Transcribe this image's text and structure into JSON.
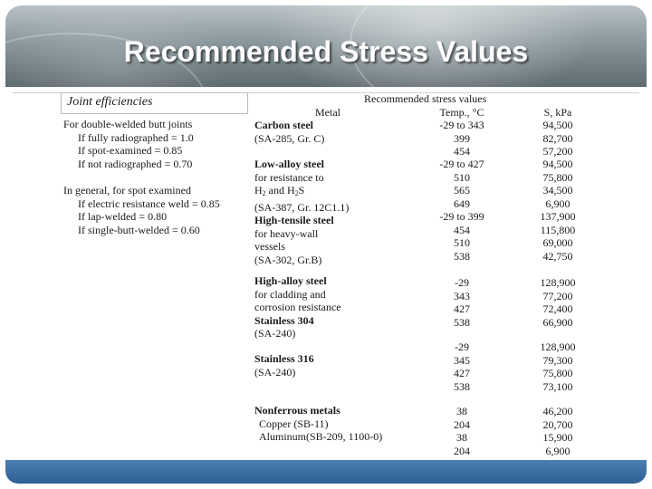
{
  "slide": {
    "title": "Recommended Stress Values"
  },
  "joint": {
    "heading": "Joint efficiencies",
    "group1_title": "For double-welded butt joints",
    "group1_items": [
      "If fully radiographed = 1.0",
      "If spot-examined = 0.85",
      "If not radiographed = 0.70"
    ],
    "group2_title": "In general, for spot examined",
    "group2_items": [
      "If electric resistance weld = 0.85",
      "If lap-welded = 0.80",
      "If single-butt-welded = 0.60"
    ]
  },
  "table": {
    "header_main": "Recommended stress values",
    "header_metal": "Metal",
    "header_temp": "Temp., °C",
    "header_stress": "S, kPa",
    "groups": [
      {
        "lines": [
          {
            "text": "Carbon steel",
            "bold": true
          },
          {
            "text": "(SA-285, Gr. C)",
            "bold": false
          }
        ],
        "temps": [
          "-29 to 343",
          "399",
          "454"
        ],
        "stress": [
          "94,500",
          "82,700",
          "57,200"
        ]
      },
      {
        "lines": [
          {
            "text": "Low-alloy steel",
            "bold": true
          },
          {
            "text": "for resistance to",
            "bold": false
          },
          {
            "text": "H2 and H2S",
            "bold": false
          },
          {
            "text": "(SA-387, Gr. 12C1.1)",
            "bold": false
          },
          {
            "text": "High-tensile steel",
            "bold": true
          },
          {
            "text": "for heavy-wall",
            "bold": false
          },
          {
            "text": "vessels",
            "bold": false
          },
          {
            "text": "(SA-302, Gr.B)",
            "bold": false
          }
        ],
        "temps": [
          "-29 to 427",
          "510",
          "565",
          "649",
          "-29 to 399",
          "454",
          "510",
          "538"
        ],
        "stress": [
          "94,500",
          "75,800",
          "34,500",
          "6,900",
          "137,900",
          "115,800",
          "69,000",
          "42,750"
        ]
      },
      {
        "lines": [
          {
            "text": "High-alloy steel",
            "bold": true
          },
          {
            "text": "for cladding and",
            "bold": false
          },
          {
            "text": "corrosion resistance",
            "bold": false
          },
          {
            "text": "Stainless 304",
            "bold": true
          },
          {
            "text": "(SA-240)",
            "bold": false
          }
        ],
        "temps": [
          "-29",
          "343",
          "427",
          "538"
        ],
        "stress": [
          "128,900",
          "77,200",
          "72,400",
          "66,900"
        ]
      },
      {
        "lines": [
          {
            "text": "Stainless 316",
            "bold": true
          },
          {
            "text": "(SA-240)",
            "bold": false
          }
        ],
        "temps": [
          "-29",
          "345",
          "427",
          "538"
        ],
        "stress": [
          "128,900",
          "79,300",
          "75,800",
          "73,100"
        ]
      },
      {
        "lines": [
          {
            "text": "Nonferrous metals",
            "bold": true
          },
          {
            "text": "Copper (SB-11)",
            "bold": false
          },
          {
            "text": "Aluminum(SB-209, 1100-0)",
            "bold": false
          }
        ],
        "temps": [
          "38",
          "204",
          "38",
          "204"
        ],
        "stress": [
          "46,200",
          "20,700",
          "15,900",
          "6,900"
        ]
      }
    ]
  }
}
